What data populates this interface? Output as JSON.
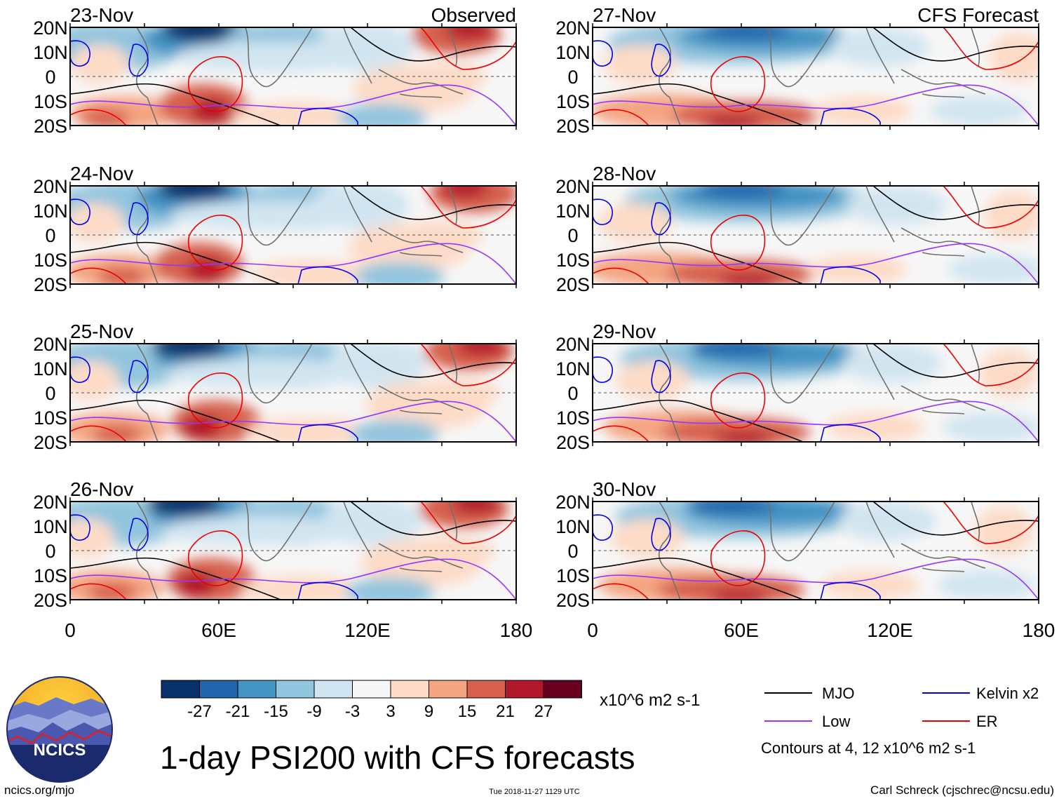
{
  "chart_data": {
    "type": "heatmap",
    "title": "1-day PSI200 with CFS forecasts",
    "lat_tick_labels": [
      "20N",
      "10N",
      "0",
      "10S",
      "20S"
    ],
    "lat_range": [
      -20,
      20
    ],
    "lon_tick_labels": [
      "0",
      "60E",
      "120E",
      "180"
    ],
    "lon_range": [
      0,
      180
    ],
    "columns": [
      {
        "label": "Observed",
        "panels": [
          "23-Nov",
          "24-Nov",
          "25-Nov",
          "26-Nov"
        ]
      },
      {
        "label": "CFS Forecast",
        "panels": [
          "27-Nov",
          "28-Nov",
          "29-Nov",
          "30-Nov"
        ]
      }
    ],
    "colorbar": {
      "units": "x10^6 m2 s-1",
      "tick_labels": [
        "-27",
        "-21",
        "-15",
        "-9",
        "-3",
        "3",
        "9",
        "15",
        "21",
        "27"
      ],
      "colors": [
        "#08306b",
        "#2166ac",
        "#4393c3",
        "#92c5de",
        "#d1e5f0",
        "#f7f7f7",
        "#fddbc7",
        "#f4a582",
        "#d6604d",
        "#b2182b",
        "#67001f"
      ]
    },
    "legend": [
      {
        "label": "MJO",
        "color": "#000000"
      },
      {
        "label": "Kelvin x2",
        "color": "#0000ee"
      },
      {
        "label": "Low",
        "color": "#9933ff"
      },
      {
        "label": "ER",
        "color": "#ee0000"
      }
    ],
    "contour_note": "Contours at 4, 12 x10^6 m2 s-1"
  },
  "footer": {
    "logo_text": "NCICS",
    "site": "ncics.org/mjo",
    "timestamp": "Tue 2018-11-27 1129 UTC",
    "author": "Carl Schreck (cjschrec@ncsu.edu)"
  }
}
